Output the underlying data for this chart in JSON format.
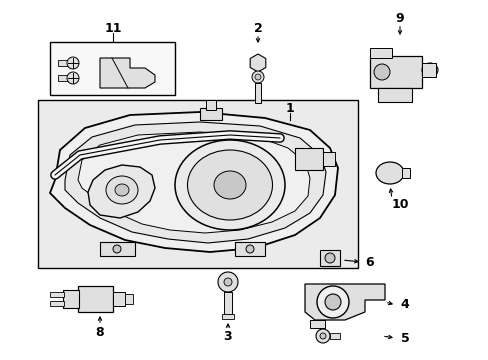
{
  "bg_color": "#ffffff",
  "line_color": "#000000",
  "fill_light": "#f0f0f0",
  "fill_gray": "#e0e0e0",
  "fill_dark": "#c8c8c8",
  "box_fill": "#ebebeb"
}
